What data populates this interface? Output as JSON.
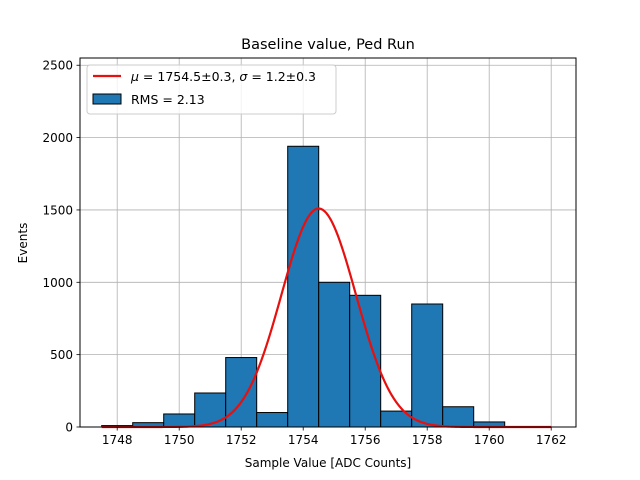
{
  "chart_data": {
    "type": "bar",
    "title": "Baseline value, Ped Run",
    "xlabel": "Sample Value [ADC Counts]",
    "ylabel": "Events",
    "xlim": [
      1746.8,
      1762.8
    ],
    "ylim": [
      0,
      2550
    ],
    "grid": true,
    "legend_position": "top-left",
    "x_ticks": [
      "1748",
      "1750",
      "1752",
      "1754",
      "1756",
      "1758",
      "1760",
      "1762"
    ],
    "y_ticks": [
      "0",
      "500",
      "1000",
      "1500",
      "2000",
      "2500"
    ],
    "bin_width": 1,
    "bin_centers": [
      1748,
      1749,
      1750,
      1751,
      1752,
      1753,
      1754,
      1755,
      1756,
      1757,
      1758,
      1759,
      1760,
      1761
    ],
    "values": [
      10,
      30,
      90,
      235,
      480,
      100,
      1940,
      1000,
      910,
      110,
      850,
      140,
      35,
      0
    ],
    "bar_color": "#1f77b4",
    "series": [
      {
        "name": "RMS = 2.13",
        "kind": "histogram"
      },
      {
        "name_math_mu": "μ",
        "name_mid": " = 1754.5±0.3, ",
        "name_math_sigma": "σ",
        "name_end": " = 1.2±0.3",
        "kind": "gaussian-fit",
        "color": "#e8100f",
        "mu": 1754.5,
        "sigma": 1.2,
        "amplitude": 1510,
        "x_range": [
          1747.5,
          1762
        ]
      }
    ]
  }
}
